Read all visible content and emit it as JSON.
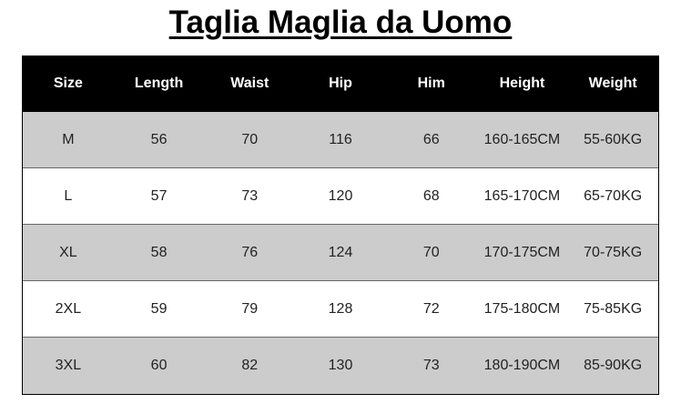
{
  "title": "Taglia Maglia da Uomo",
  "headers": [
    "Size",
    "Length",
    "Waist",
    "Hip",
    "Him",
    "Height",
    "Weight"
  ],
  "rows": [
    [
      "M",
      "56",
      "70",
      "116",
      "66",
      "160-165CM",
      "55-60KG"
    ],
    [
      "L",
      "57",
      "73",
      "120",
      "68",
      "165-170CM",
      "65-70KG"
    ],
    [
      "XL",
      "58",
      "76",
      "124",
      "70",
      "170-175CM",
      "70-75KG"
    ],
    [
      "2XL",
      "59",
      "79",
      "128",
      "72",
      "175-180CM",
      "75-85KG"
    ],
    [
      "3XL",
      "60",
      "82",
      "130",
      "73",
      "180-190CM",
      "85-90KG"
    ]
  ],
  "colors": {
    "header_bg": "#000000",
    "row_alt_bg": "#cccccc",
    "row_bg": "#ffffff"
  }
}
